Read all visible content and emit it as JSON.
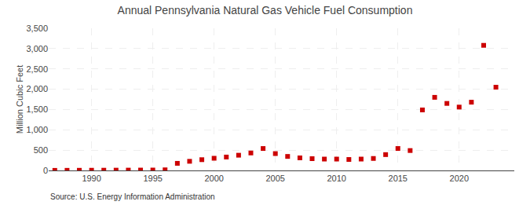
{
  "chart_data": {
    "type": "scatter",
    "title": "Annual Pennsylvania Natural Gas Vehicle Fuel Consumption",
    "ylabel": "Million Cubic Feet",
    "source": "Source: U.S. Energy Information Administration",
    "x": [
      1987,
      1988,
      1989,
      1990,
      1991,
      1992,
      1993,
      1994,
      1995,
      1996,
      1997,
      1998,
      1999,
      2000,
      2001,
      2002,
      2003,
      2004,
      2005,
      2006,
      2007,
      2008,
      2009,
      2010,
      2011,
      2012,
      2013,
      2014,
      2015,
      2016,
      2017,
      2018,
      2019,
      2020,
      2021,
      2022,
      2023
    ],
    "values": [
      2,
      3,
      4,
      5,
      6,
      7,
      8,
      9,
      10,
      15,
      175,
      225,
      265,
      300,
      330,
      375,
      430,
      540,
      415,
      345,
      310,
      290,
      280,
      280,
      270,
      280,
      295,
      390,
      540,
      490,
      1490,
      1800,
      1650,
      1560,
      1680,
      3080,
      2050
    ],
    "color": "#cc0000",
    "marker": "square",
    "xlim": [
      1986.5,
      2024.5
    ],
    "ylim": [
      0,
      3500
    ],
    "xticks": [
      1990,
      1995,
      2000,
      2005,
      2010,
      2015,
      2020
    ],
    "yticks": [
      0,
      500,
      {
        "value": 1000,
        "label": "1,000"
      },
      {
        "value": 1500,
        "label": "1,500"
      },
      {
        "value": 2000,
        "label": "2,000"
      },
      {
        "value": 2500,
        "label": "2,500"
      },
      {
        "value": 3000,
        "label": "3,000"
      },
      {
        "value": 3500,
        "label": "3,500"
      }
    ],
    "grid": true
  }
}
